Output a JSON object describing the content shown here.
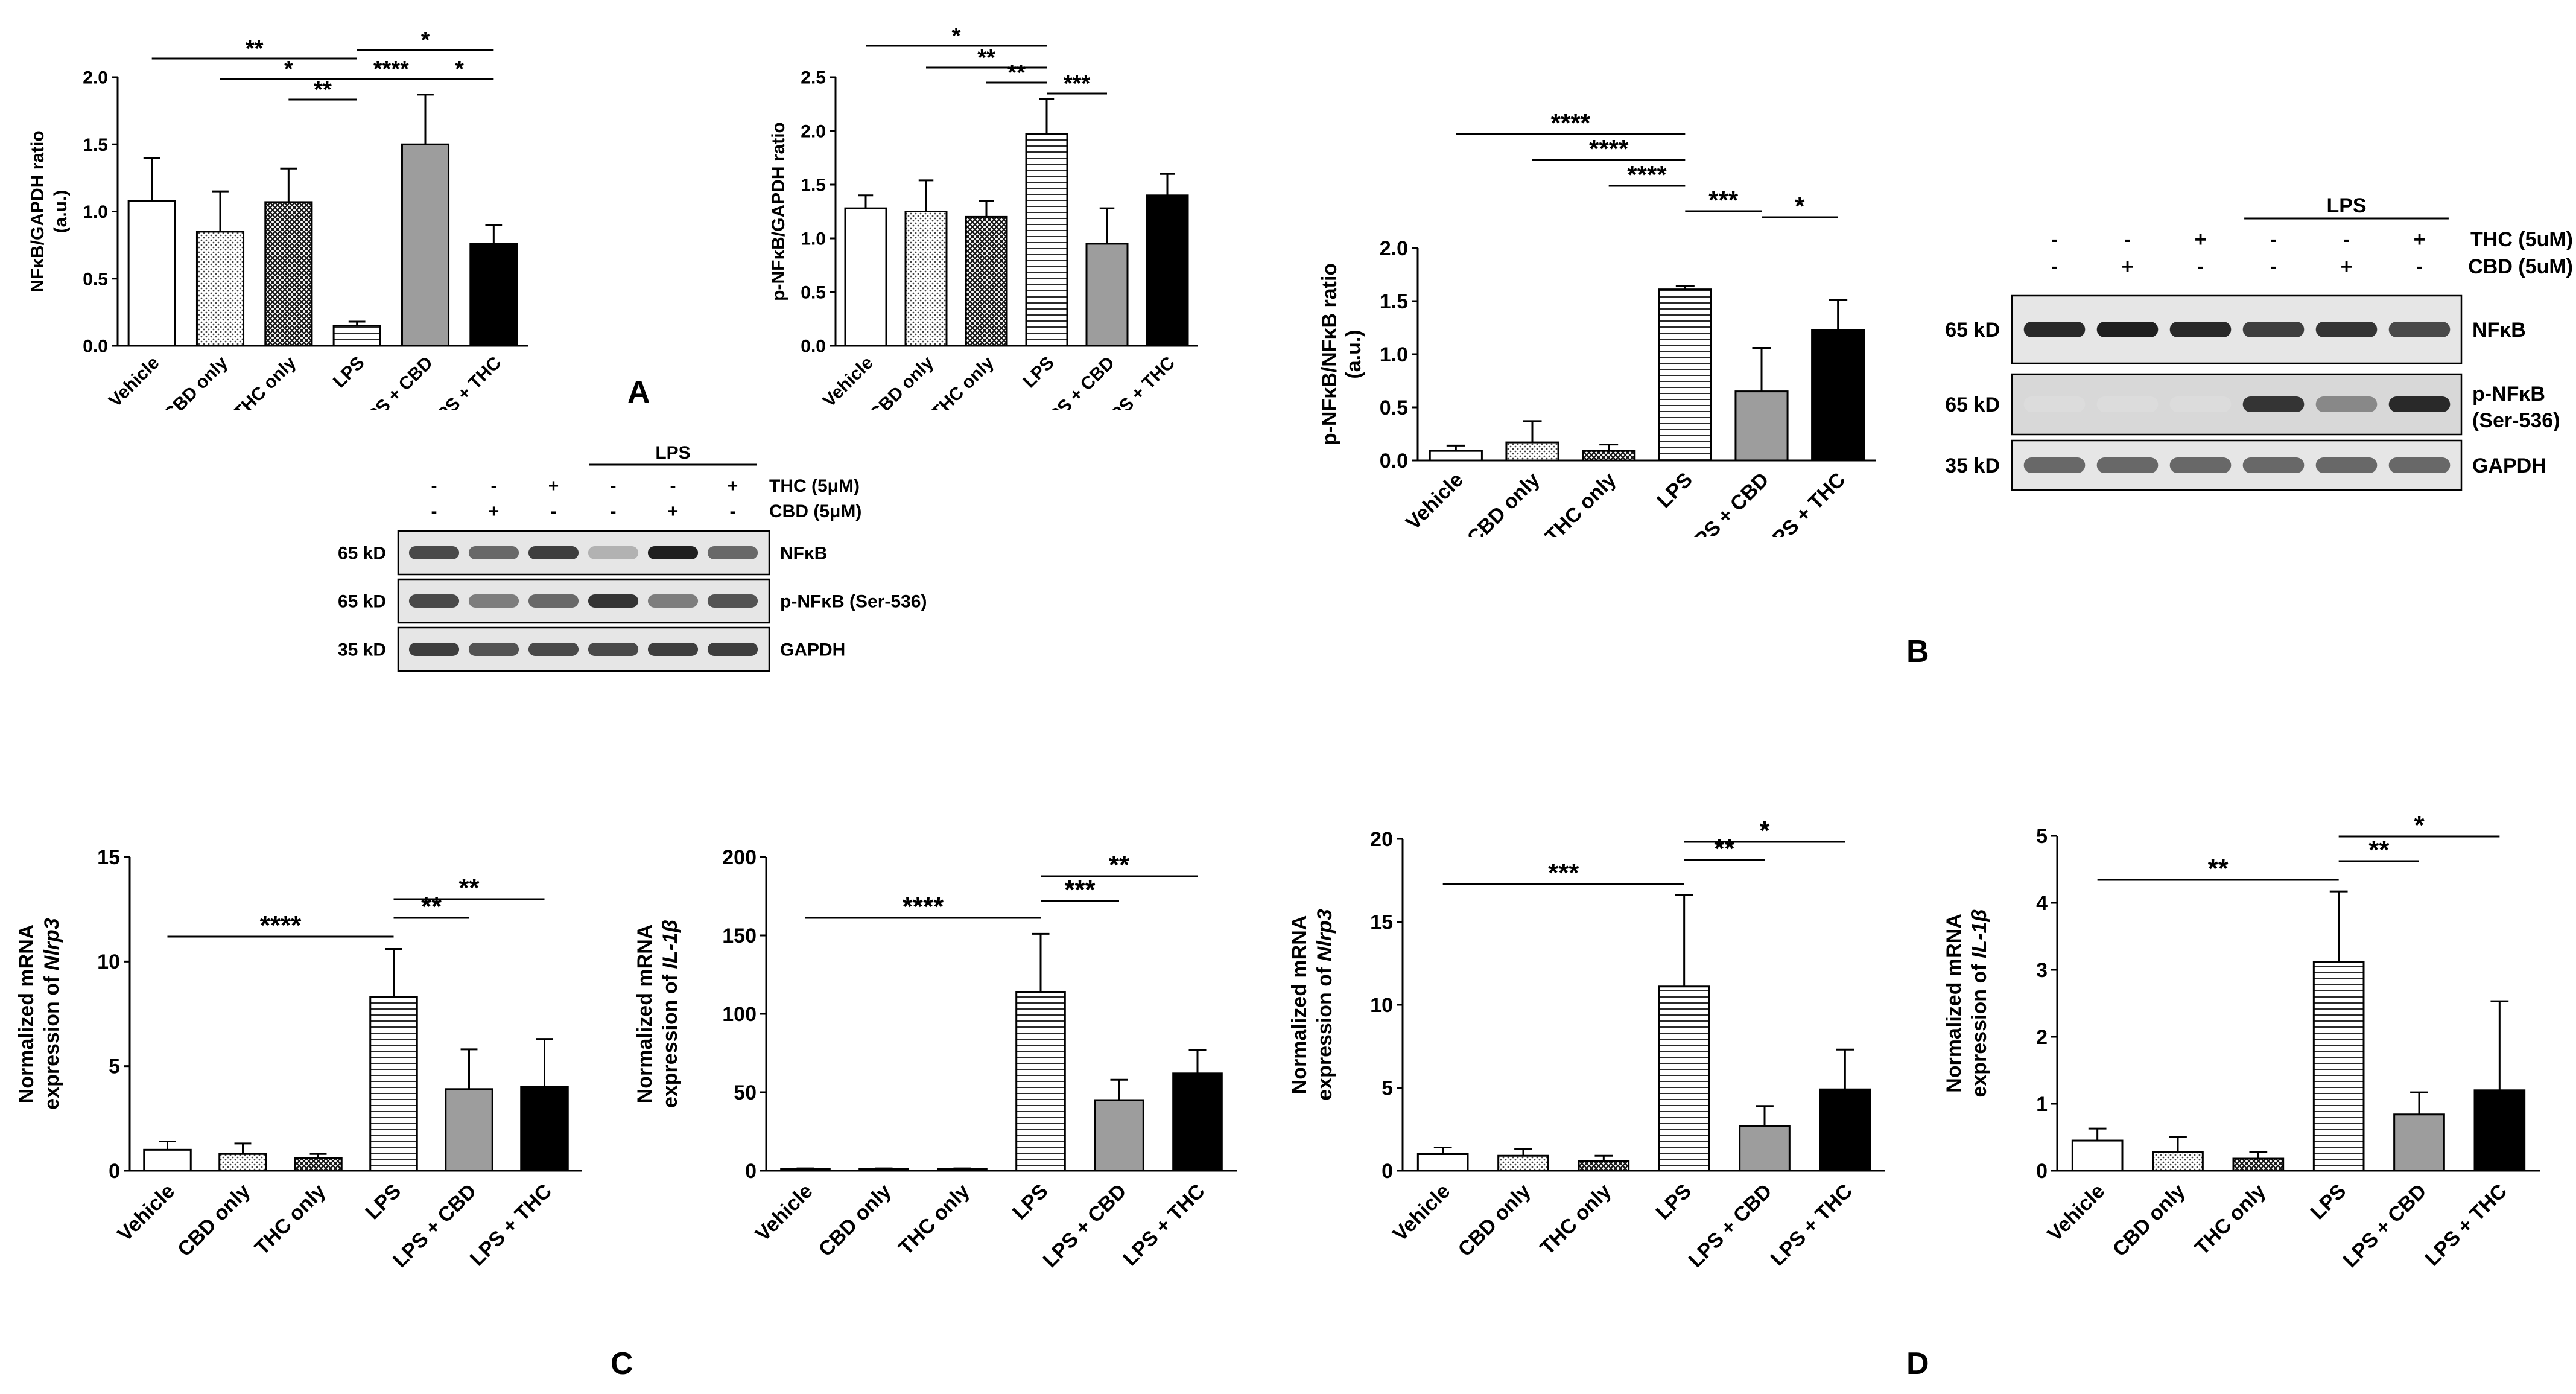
{
  "panel_labels": {
    "A": "A",
    "B": "B",
    "C": "C",
    "D": "D"
  },
  "chart_data": [
    {
      "type": "bar",
      "id": "A1",
      "panel": "A",
      "categories": [
        "Vehicle",
        "CBD only",
        "THC only",
        "LPS",
        "LPS + CBD",
        "LPS + THC"
      ],
      "values": [
        1.08,
        0.85,
        1.07,
        0.15,
        1.5,
        0.76
      ],
      "errors": [
        0.32,
        0.3,
        0.25,
        0.03,
        0.37,
        0.14
      ],
      "ylabel": "NFκB/GAPDH ratio",
      "ylabel2": "(a.u.)",
      "ylim": [
        0,
        2.0
      ],
      "yticks": [
        "0.0",
        "0.5",
        "1.0",
        "1.5",
        "2.0"
      ],
      "significance": [
        {
          "from": 0,
          "to": 3,
          "label": "**"
        },
        {
          "from": 1,
          "to": 3,
          "label": "*"
        },
        {
          "from": 2,
          "to": 3,
          "label": "**"
        },
        {
          "from": 3,
          "to": 5,
          "label": "*"
        },
        {
          "from": 3,
          "to": 4,
          "label": "****"
        },
        {
          "from": 4,
          "to": 5,
          "label": "*"
        }
      ]
    },
    {
      "type": "bar",
      "id": "A2",
      "panel": "A",
      "categories": [
        "Vehicle",
        "CBD only",
        "THC only",
        "LPS",
        "LPS + CBD",
        "LPS + THC"
      ],
      "values": [
        1.28,
        1.25,
        1.2,
        1.97,
        0.95,
        1.4
      ],
      "errors": [
        0.12,
        0.29,
        0.15,
        0.33,
        0.33,
        0.2
      ],
      "ylabel": "p-NFκB/GAPDH ratio",
      "ylabel2": "",
      "ylim": [
        0,
        2.5
      ],
      "yticks": [
        "0.0",
        "0.5",
        "1.0",
        "1.5",
        "2.0",
        "2.5"
      ],
      "significance": [
        {
          "from": 0,
          "to": 3,
          "label": "*"
        },
        {
          "from": 1,
          "to": 3,
          "label": "**"
        },
        {
          "from": 2,
          "to": 3,
          "label": "**"
        },
        {
          "from": 3,
          "to": 4,
          "label": "***"
        }
      ]
    },
    {
      "type": "bar",
      "id": "B1",
      "panel": "B",
      "categories": [
        "Vehicle",
        "CBD only",
        "THC only",
        "LPS",
        "LPS + CBD",
        "LPS + THC"
      ],
      "values": [
        0.09,
        0.17,
        0.09,
        1.61,
        0.65,
        1.23
      ],
      "errors": [
        0.05,
        0.2,
        0.06,
        0.03,
        0.41,
        0.28
      ],
      "ylabel": "p-NFκB/NFκB ratio",
      "ylabel2": "(a.u.)",
      "ylim": [
        0,
        2.0
      ],
      "yticks": [
        "0.0",
        "0.5",
        "1.0",
        "1.5",
        "2.0"
      ],
      "significance": [
        {
          "from": 0,
          "to": 3,
          "label": "****"
        },
        {
          "from": 1,
          "to": 3,
          "label": "****"
        },
        {
          "from": 2,
          "to": 3,
          "label": "****"
        },
        {
          "from": 3,
          "to": 4,
          "label": "***"
        },
        {
          "from": 4,
          "to": 5,
          "label": "*"
        }
      ]
    },
    {
      "type": "bar",
      "id": "C1",
      "panel": "C",
      "categories": [
        "Vehicle",
        "CBD only",
        "THC only",
        "LPS",
        "LPS + CBD",
        "LPS + THC"
      ],
      "values": [
        1.0,
        0.8,
        0.6,
        8.3,
        3.9,
        4.0
      ],
      "errors": [
        0.4,
        0.5,
        0.2,
        2.3,
        1.9,
        2.3
      ],
      "ylabel": "Normalized mRNA",
      "ylabel2": "expression of ",
      "ylabel_gene": "Nlrp3",
      "ylim": [
        0,
        15
      ],
      "yticks": [
        "0",
        "5",
        "10",
        "15"
      ],
      "significance": [
        {
          "from": 0,
          "to": 3,
          "label": "****"
        },
        {
          "from": 3,
          "to": 4,
          "label": "**"
        },
        {
          "from": 3,
          "to": 5,
          "label": "**"
        }
      ]
    },
    {
      "type": "bar",
      "id": "C2",
      "panel": "C",
      "categories": [
        "Vehicle",
        "CBD only",
        "THC only",
        "LPS",
        "LPS + CBD",
        "LPS + THC"
      ],
      "values": [
        1,
        1,
        1,
        114,
        45,
        62
      ],
      "errors": [
        0.5,
        0.5,
        0.5,
        37,
        13,
        15
      ],
      "ylabel": "Normalized mRNA",
      "ylabel2": "expression of ",
      "ylabel_gene": "IL-1β",
      "ylim": [
        0,
        200
      ],
      "yticks": [
        "0",
        "50",
        "100",
        "150",
        "200"
      ],
      "significance": [
        {
          "from": 0,
          "to": 3,
          "label": "****"
        },
        {
          "from": 3,
          "to": 4,
          "label": "***"
        },
        {
          "from": 3,
          "to": 5,
          "label": "**"
        }
      ]
    },
    {
      "type": "bar",
      "id": "D1",
      "panel": "D",
      "categories": [
        "Vehicle",
        "CBD only",
        "THC only",
        "LPS",
        "LPS + CBD",
        "LPS + THC"
      ],
      "values": [
        1.0,
        0.9,
        0.6,
        11.1,
        2.7,
        4.9
      ],
      "errors": [
        0.4,
        0.4,
        0.3,
        5.5,
        1.2,
        2.4
      ],
      "ylabel": "Normalized mRNA",
      "ylabel2": "expression of ",
      "ylabel_gene": "Nlrp3",
      "ylim": [
        0,
        20
      ],
      "yticks": [
        "0",
        "5",
        "10",
        "15",
        "20"
      ],
      "significance": [
        {
          "from": 0,
          "to": 3,
          "label": "***"
        },
        {
          "from": 3,
          "to": 4,
          "label": "**"
        },
        {
          "from": 3,
          "to": 5,
          "label": "*"
        }
      ]
    },
    {
      "type": "bar",
      "id": "D2",
      "panel": "D",
      "categories": [
        "Vehicle",
        "CBD only",
        "THC only",
        "LPS",
        "LPS + CBD",
        "LPS + THC"
      ],
      "values": [
        0.45,
        0.28,
        0.18,
        3.12,
        0.84,
        1.2
      ],
      "errors": [
        0.18,
        0.22,
        0.1,
        1.05,
        0.33,
        1.33
      ],
      "ylabel": "Normalized mRNA",
      "ylabel2": "expression of ",
      "ylabel_gene": "IL-1β",
      "ylim": [
        0,
        5
      ],
      "yticks": [
        "0",
        "1",
        "2",
        "3",
        "4",
        "5"
      ],
      "significance": [
        {
          "from": 0,
          "to": 3,
          "label": "**"
        },
        {
          "from": 3,
          "to": 4,
          "label": "**"
        },
        {
          "from": 3,
          "to": 5,
          "label": "*"
        }
      ]
    }
  ],
  "blots": {
    "A": {
      "lps_label": "LPS",
      "thc_label": "THC (5μM)",
      "cbd_label": "CBD (5μM)",
      "thc_signs": [
        "-",
        "-",
        "+",
        "-",
        "-",
        "+"
      ],
      "cbd_signs": [
        "-",
        "+",
        "-",
        "-",
        "+",
        "-"
      ],
      "rows": [
        {
          "size": "65 kD",
          "protein": "NFκB",
          "bands": [
            0.75,
            0.6,
            0.8,
            0.25,
            0.95,
            0.6
          ]
        },
        {
          "size": "65 kD",
          "protein": "p-NFκB (Ser-536)",
          "bands": [
            0.75,
            0.5,
            0.6,
            0.85,
            0.5,
            0.7
          ]
        },
        {
          "size": "35 kD",
          "protein": "GAPDH",
          "bands": [
            0.8,
            0.7,
            0.75,
            0.75,
            0.8,
            0.8
          ]
        }
      ]
    },
    "B": {
      "lps_label": "LPS",
      "thc_label": "THC (5uM)",
      "cbd_label": "CBD (5uM)",
      "thc_signs": [
        "-",
        "-",
        "+",
        "-",
        "-",
        "+"
      ],
      "cbd_signs": [
        "-",
        "+",
        "-",
        "-",
        "+",
        "-"
      ],
      "rows": [
        {
          "size": "65 kD",
          "protein": "NFκB",
          "protein2": "",
          "bands": [
            0.9,
            0.95,
            0.9,
            0.8,
            0.85,
            0.75
          ]
        },
        {
          "size": "65 kD",
          "protein": "p-NFκB",
          "protein2": "(Ser-536)",
          "bands": [
            0.05,
            0.05,
            0.05,
            0.85,
            0.45,
            0.9
          ]
        },
        {
          "size": "35 kD",
          "protein": "GAPDH",
          "protein2": "",
          "bands": [
            0.6,
            0.6,
            0.6,
            0.6,
            0.6,
            0.6
          ]
        }
      ]
    }
  }
}
